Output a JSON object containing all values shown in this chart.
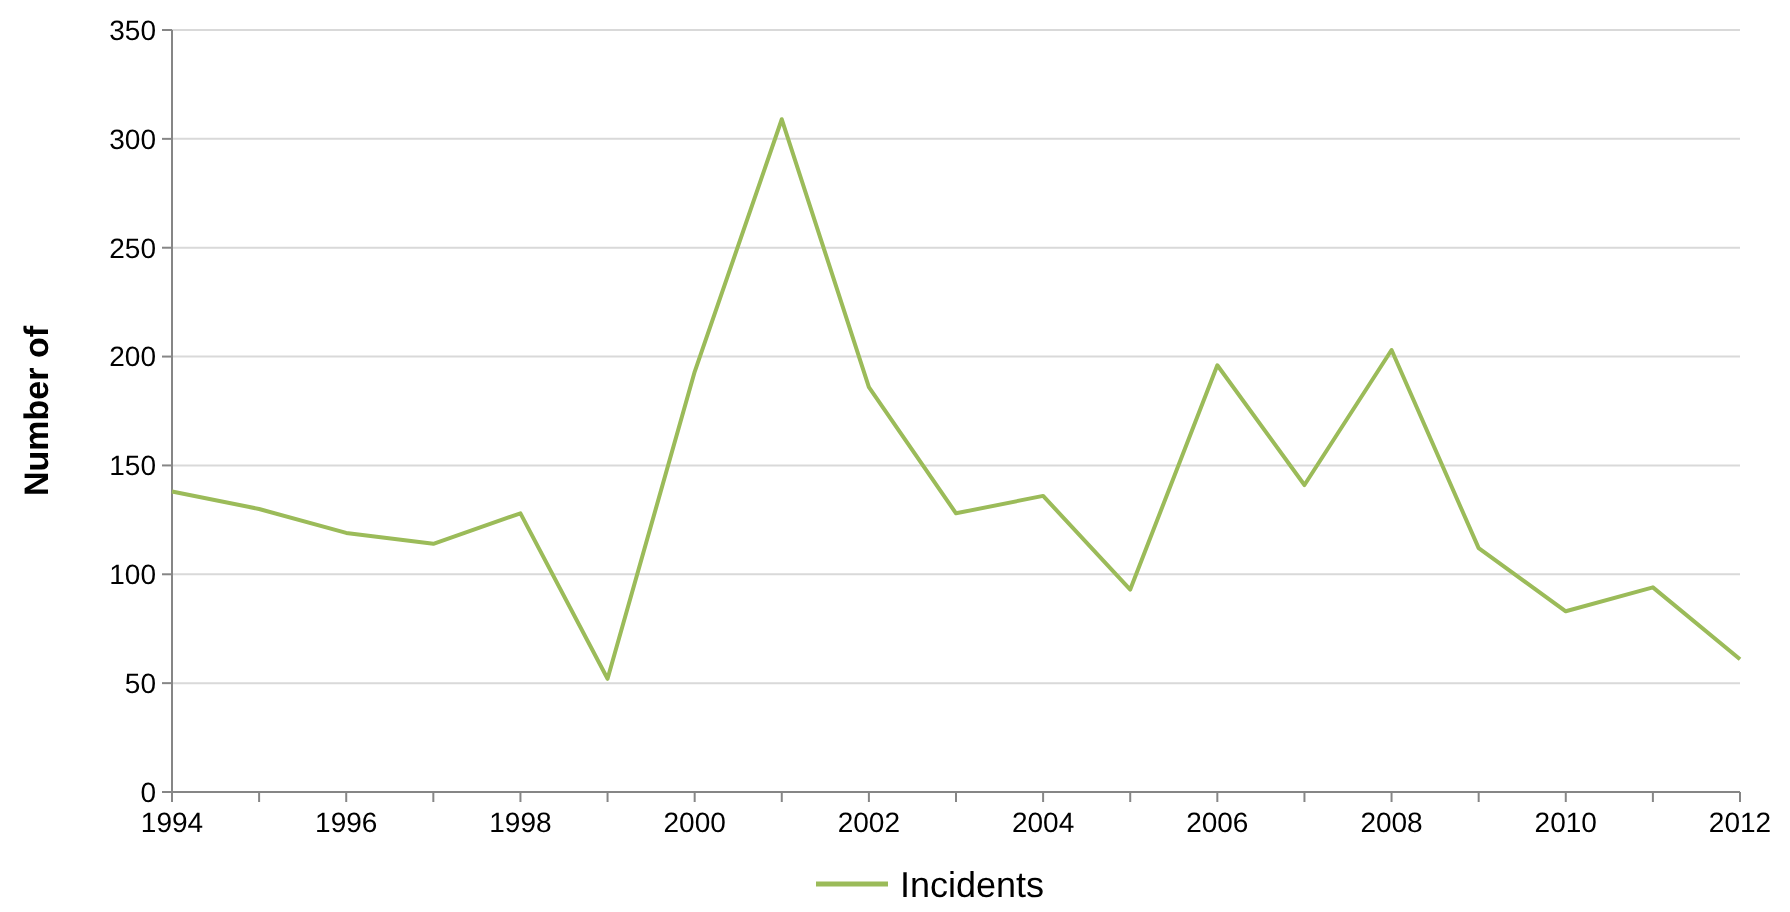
{
  "chart_data": {
    "type": "line",
    "ylabel": "Number of",
    "x": [
      1994,
      1995,
      1996,
      1997,
      1998,
      1999,
      2000,
      2001,
      2002,
      2003,
      2004,
      2005,
      2006,
      2007,
      2008,
      2009,
      2010,
      2011,
      2012
    ],
    "series": [
      {
        "name": "Incidents",
        "color": "#9bbb59",
        "values": [
          138,
          130,
          119,
          114,
          128,
          52,
          193,
          309,
          186,
          128,
          136,
          93,
          196,
          141,
          203,
          112,
          83,
          94,
          61
        ]
      }
    ],
    "xlim": [
      1994,
      2012
    ],
    "xticks": [
      1994,
      {
        "value": 1995,
        "label": null
      },
      1996,
      {
        "value": 1997,
        "label": null
      },
      1998,
      {
        "value": 1999,
        "label": null
      },
      2000,
      {
        "value": 2001,
        "label": null
      },
      2002,
      {
        "value": 2003,
        "label": null
      },
      2004,
      {
        "value": 2005,
        "label": null
      },
      2006,
      {
        "value": 2007,
        "label": null
      },
      2008,
      {
        "value": 2009,
        "label": null
      },
      2010,
      {
        "value": 2011,
        "label": null
      },
      2012
    ],
    "ylim": [
      0,
      350
    ],
    "yticks": [
      0,
      50,
      100,
      150,
      200,
      250,
      300,
      350
    ],
    "grid": "y",
    "legend": "bottom",
    "marker": "none",
    "line_style": "solid"
  }
}
